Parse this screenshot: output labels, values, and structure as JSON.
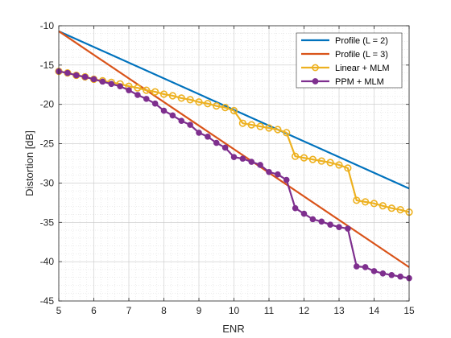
{
  "chart_data": {
    "type": "line",
    "xlabel": "ENR",
    "ylabel": "Distortion [dB]",
    "xlim": [
      5,
      15
    ],
    "ylim": [
      -45,
      -10
    ],
    "xticks": [
      5,
      6,
      7,
      8,
      9,
      10,
      11,
      12,
      13,
      14,
      15
    ],
    "yticks": [
      -10,
      -15,
      -20,
      -25,
      -30,
      -35,
      -40,
      -45
    ],
    "grid": "on (major and minor dotted)",
    "legend_position": "top-right",
    "series": [
      {
        "name": "Profile (L = 2)",
        "color": "#0072BD",
        "marker": "none",
        "x": [
          5,
          15
        ],
        "y": [
          -10.7,
          -30.7
        ]
      },
      {
        "name": "Profile (L = 3)",
        "color": "#D95319",
        "marker": "none",
        "x": [
          5,
          15
        ],
        "y": [
          -10.7,
          -40.7
        ]
      },
      {
        "name": "Linear + MLM",
        "color": "#EDB120",
        "marker": "open-circle",
        "x": [
          5,
          5.25,
          5.5,
          5.75,
          6,
          6.25,
          6.5,
          6.75,
          7,
          7.25,
          7.5,
          7.75,
          8,
          8.25,
          8.5,
          8.75,
          9,
          9.25,
          9.5,
          9.75,
          10,
          10.25,
          10.5,
          10.75,
          11,
          11.25,
          11.5,
          11.75,
          12,
          12.25,
          12.5,
          12.75,
          13,
          13.25,
          13.5,
          13.75,
          14,
          14.25,
          14.5,
          14.75,
          15
        ],
        "y": [
          -15.8,
          -16.0,
          -16.3,
          -16.5,
          -16.8,
          -17.0,
          -17.2,
          -17.4,
          -17.7,
          -17.9,
          -18.2,
          -18.4,
          -18.7,
          -18.9,
          -19.2,
          -19.4,
          -19.7,
          -19.9,
          -20.2,
          -20.4,
          -20.8,
          -22.4,
          -22.6,
          -22.8,
          -23.0,
          -23.2,
          -23.6,
          -26.6,
          -26.8,
          -27.0,
          -27.2,
          -27.4,
          -27.7,
          -28.1,
          -32.2,
          -32.4,
          -32.6,
          -32.9,
          -33.2,
          -33.4,
          -33.7
        ]
      },
      {
        "name": "PPM + MLM",
        "color": "#7E2F8E",
        "marker": "filled-circle",
        "x": [
          5,
          5.25,
          5.5,
          5.75,
          6,
          6.25,
          6.5,
          6.75,
          7,
          7.25,
          7.5,
          7.75,
          8,
          8.25,
          8.5,
          8.75,
          9,
          9.25,
          9.5,
          9.75,
          10,
          10.25,
          10.5,
          10.75,
          11,
          11.25,
          11.5,
          11.75,
          12,
          12.25,
          12.5,
          12.75,
          13,
          13.25,
          13.5,
          13.75,
          14,
          14.25,
          14.5,
          14.75,
          15
        ],
        "y": [
          -15.8,
          -16.0,
          -16.3,
          -16.5,
          -16.8,
          -17.1,
          -17.4,
          -17.7,
          -18.2,
          -18.8,
          -19.3,
          -19.9,
          -20.8,
          -21.4,
          -22.1,
          -22.6,
          -23.6,
          -24.1,
          -24.9,
          -25.5,
          -26.7,
          -26.9,
          -27.3,
          -27.7,
          -28.6,
          -28.9,
          -29.6,
          -33.2,
          -33.9,
          -34.6,
          -34.9,
          -35.3,
          -35.6,
          -35.8,
          -40.6,
          -40.7,
          -41.2,
          -41.5,
          -41.7,
          -41.9,
          -42.1
        ]
      }
    ]
  }
}
